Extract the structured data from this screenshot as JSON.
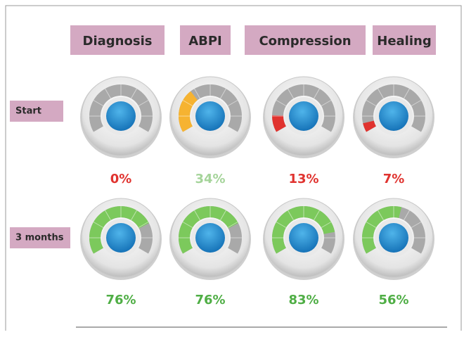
{
  "chart_data": {
    "type": "gauge",
    "categories": [
      "Diagnosis",
      "ABPI",
      "Compression",
      "Healing"
    ],
    "ylim": [
      0,
      100
    ],
    "series": [
      {
        "name": "Start",
        "values": [
          0,
          34,
          13,
          7
        ],
        "value_labels": [
          "0%",
          "34%",
          "13%",
          "7%"
        ],
        "colors": [
          "#e0332f",
          "#f6b331",
          "#e0332f",
          "#e0332f"
        ],
        "label_colors": [
          "#e0332f",
          "#a5d49a",
          "#e0332f",
          "#e0332f"
        ]
      },
      {
        "name": "3 months",
        "values": [
          76,
          76,
          83,
          56
        ],
        "value_labels": [
          "76%",
          "76%",
          "83%",
          "56%"
        ],
        "colors": [
          "#7cc95c",
          "#7cc95c",
          "#7cc95c",
          "#7cc95c"
        ],
        "label_colors": [
          "#4fae45",
          "#4fae45",
          "#4fae45",
          "#4fae45"
        ]
      }
    ]
  }
}
